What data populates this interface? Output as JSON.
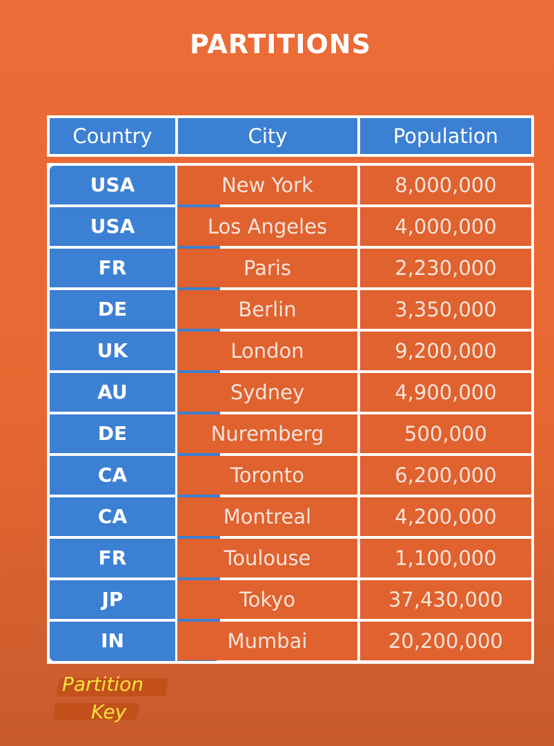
{
  "title": "PARTITIONS",
  "table": {
    "headers": [
      "Country",
      "City",
      "Population"
    ],
    "rows": [
      {
        "country": "USA",
        "city": "New York",
        "population": "8,000,000"
      },
      {
        "country": "USA",
        "city": "Los Angeles",
        "population": "4,000,000"
      },
      {
        "country": "FR",
        "city": "Paris",
        "population": "2,230,000"
      },
      {
        "country": "DE",
        "city": "Berlin",
        "population": "3,350,000"
      },
      {
        "country": "UK",
        "city": "London",
        "population": "9,200,000"
      },
      {
        "country": "AU",
        "city": "Sydney",
        "population": "4,900,000"
      },
      {
        "country": "DE",
        "city": "Nuremberg",
        "population": "500,000"
      },
      {
        "country": "CA",
        "city": "Toronto",
        "population": "6,200,000"
      },
      {
        "country": "CA",
        "city": "Montreal",
        "population": "4,200,000"
      },
      {
        "country": "FR",
        "city": "Toulouse",
        "population": "1,100,000"
      },
      {
        "country": "JP",
        "city": "Tokyo",
        "population": "37,430,000"
      },
      {
        "country": "IN",
        "city": "Mumbai",
        "population": "20,200,000"
      }
    ]
  },
  "legend": {
    "line1": "Partition",
    "line2": "Key"
  },
  "colors": {
    "background": "#e86732",
    "partition_blue": "#3c80d3",
    "cell_orange": "#e0622e",
    "grid_white": "#ffffff",
    "legend_yellow": "#f7e33c"
  }
}
